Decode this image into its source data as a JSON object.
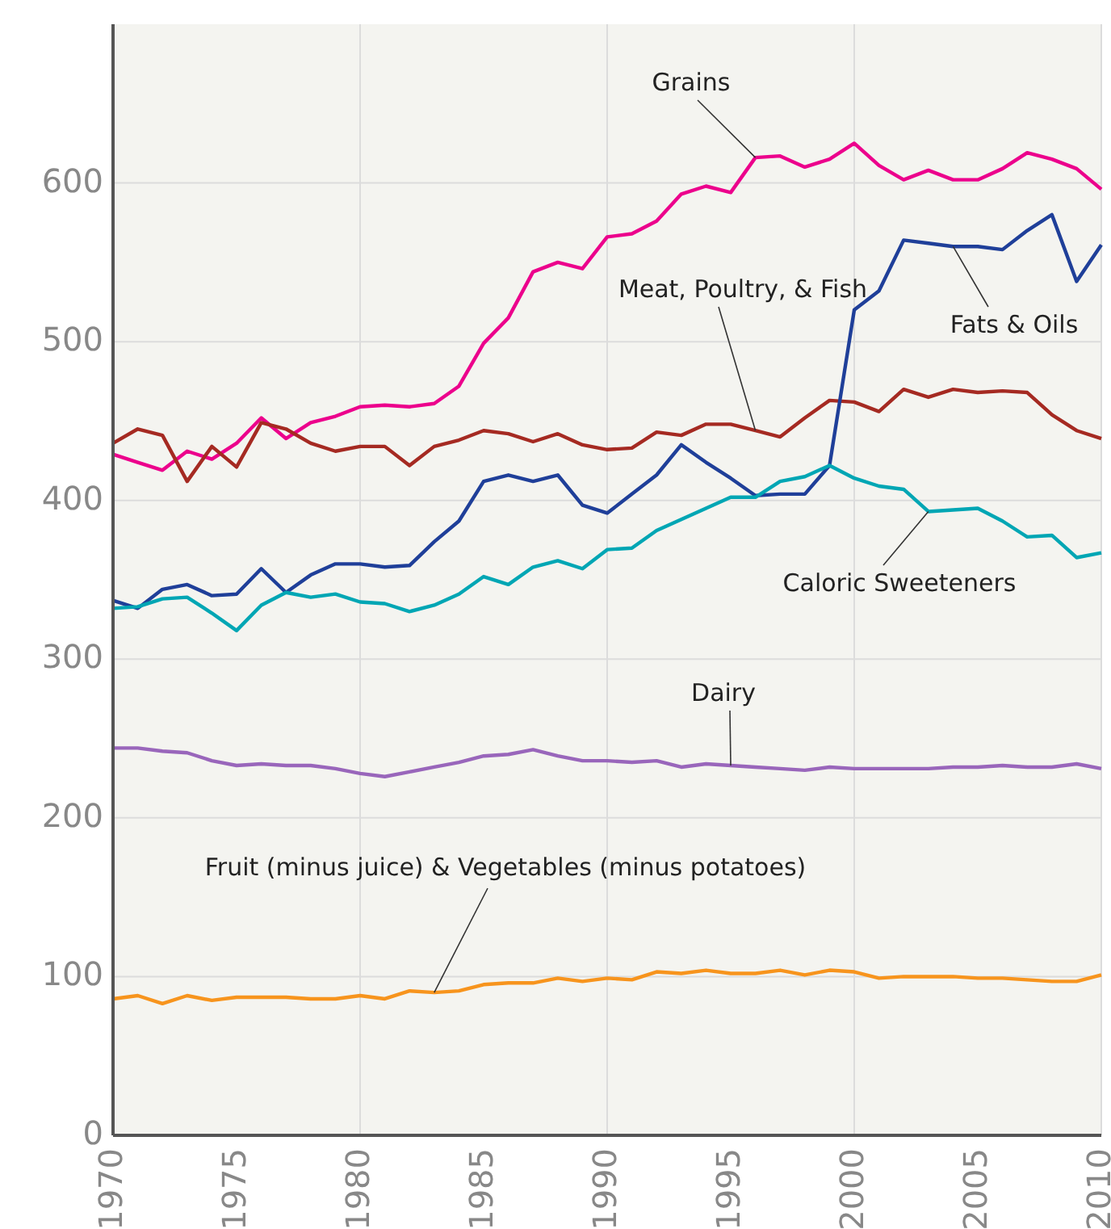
{
  "chart_data": {
    "type": "line",
    "x": [
      1970,
      1971,
      1972,
      1973,
      1974,
      1975,
      1976,
      1977,
      1978,
      1979,
      1980,
      1981,
      1982,
      1983,
      1984,
      1985,
      1986,
      1987,
      1988,
      1989,
      1990,
      1991,
      1992,
      1993,
      1994,
      1995,
      1996,
      1997,
      1998,
      1999,
      2000,
      2001,
      2002,
      2003,
      2004,
      2005,
      2006,
      2007,
      2008,
      2009,
      2010
    ],
    "series": [
      {
        "name": "Grains",
        "color": "#ec008c",
        "values": [
          429,
          424,
          419,
          431,
          426,
          436,
          452,
          439,
          449,
          453,
          459,
          460,
          459,
          461,
          472,
          499,
          515,
          544,
          550,
          546,
          566,
          568,
          576,
          593,
          598,
          594,
          616,
          617,
          610,
          615,
          625,
          611,
          602,
          608,
          602,
          602,
          609,
          619,
          615,
          609,
          596
        ]
      },
      {
        "name": "Meat, Poultry, & Fish",
        "color": "#a52a22",
        "values": [
          436,
          445,
          441,
          412,
          434,
          421,
          449,
          445,
          436,
          431,
          434,
          434,
          422,
          434,
          438,
          444,
          442,
          437,
          442,
          435,
          432,
          433,
          443,
          441,
          448,
          448,
          444,
          440,
          452,
          463,
          462,
          456,
          470,
          465,
          470,
          468,
          469,
          468,
          454,
          444,
          439
        ]
      },
      {
        "name": "Fats & Oils",
        "color": "#1f3f99",
        "values": [
          337,
          332,
          344,
          347,
          340,
          341,
          357,
          342,
          353,
          360,
          360,
          358,
          359,
          374,
          387,
          412,
          416,
          412,
          416,
          397,
          392,
          404,
          416,
          435,
          424,
          414,
          403,
          404,
          404,
          422,
          520,
          532,
          564,
          562,
          560,
          560,
          558,
          570,
          580,
          538,
          561
        ]
      },
      {
        "name": "Caloric Sweeteners",
        "color": "#00a6b4",
        "values": [
          332,
          333,
          338,
          339,
          329,
          318,
          334,
          342,
          339,
          341,
          336,
          335,
          330,
          334,
          341,
          352,
          347,
          358,
          362,
          357,
          369,
          370,
          381,
          388,
          395,
          402,
          402,
          412,
          415,
          422,
          414,
          409,
          407,
          393,
          394,
          395,
          387,
          377,
          378,
          364,
          367
        ]
      },
      {
        "name": "Dairy",
        "color": "#9966bb",
        "values": [
          244,
          244,
          242,
          241,
          236,
          233,
          234,
          233,
          233,
          231,
          228,
          226,
          229,
          232,
          235,
          239,
          240,
          243,
          239,
          236,
          236,
          235,
          236,
          232,
          234,
          233,
          232,
          231,
          230,
          232,
          231,
          231,
          231,
          231,
          232,
          232,
          233,
          232,
          232,
          234,
          231
        ]
      },
      {
        "name": "Fruit (minus juice) & Vegetables (minus potatoes)",
        "color": "#f7941d",
        "values": [
          86,
          88,
          83,
          88,
          85,
          87,
          87,
          87,
          86,
          86,
          88,
          86,
          91,
          90,
          91,
          95,
          96,
          96,
          99,
          97,
          99,
          98,
          103,
          102,
          104,
          102,
          102,
          104,
          101,
          104,
          103,
          99,
          100,
          100,
          100,
          99,
          99,
          98,
          97,
          97,
          101
        ]
      }
    ],
    "xlim": [
      1970,
      2010
    ],
    "xticks": [
      1970,
      1975,
      1980,
      1985,
      1990,
      1995,
      2000,
      2005,
      2010
    ],
    "ylim": [
      0,
      700
    ],
    "yticks": [
      0,
      100,
      200,
      300,
      400,
      500,
      600
    ],
    "grid": true,
    "marker": "none",
    "line_style": "solid"
  }
}
